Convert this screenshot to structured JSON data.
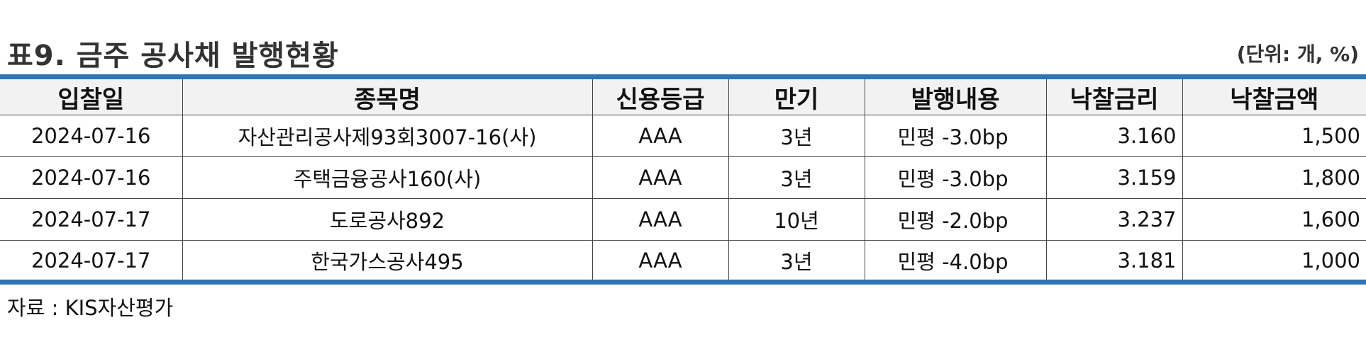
{
  "title": "표9. 금주 공사채 발행현황",
  "unit": "(단위: 개, %)",
  "columns": [
    "입찰일",
    "종목명",
    "신용등급",
    "만기",
    "발행내용",
    "낙찰금리",
    "낙찰금액"
  ],
  "rows": [
    [
      "2024-07-16",
      "자산관리공사제93회3007-16(사)",
      "AAA",
      "3년",
      "민평  -3.0bp",
      "3.160",
      "1,500"
    ],
    [
      "2024-07-16",
      "주택금융공사160(사)",
      "AAA",
      "3년",
      "민평  -3.0bp",
      "3.159",
      "1,800"
    ],
    [
      "2024-07-17",
      "도로공사892",
      "AAA",
      "10년",
      "민평  -2.0bp",
      "3.237",
      "1,600"
    ],
    [
      "2024-07-17",
      "한국가스공사495",
      "AAA",
      "3년",
      "민평  -4.0bp",
      "3.181",
      "1,000"
    ]
  ],
  "source": "자료 : KIS자산평가",
  "colors": {
    "rule": "#2e75b6",
    "header_bg": "#f2f2f2"
  }
}
